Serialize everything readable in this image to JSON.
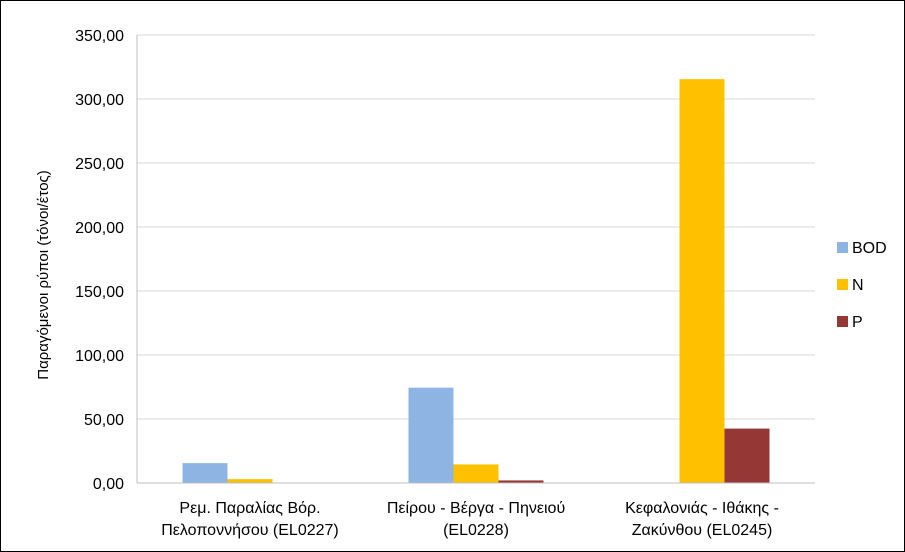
{
  "chart_data": {
    "type": "bar",
    "title": "",
    "xlabel": "",
    "ylabel": "Παραγόμενοι ρύποι (τόνοι/έτος)",
    "ylim": [
      0,
      350
    ],
    "yticks": [
      "0,00",
      "50,00",
      "100,00",
      "150,00",
      "200,00",
      "250,00",
      "300,00",
      "350,00"
    ],
    "grid": true,
    "legend_position": "right",
    "categories": [
      [
        "Ρεμ. Παραλίας Βόρ.",
        "Πελοποννήσου (EL0227)"
      ],
      [
        "Πείρου - Βέργα - Πηνειού",
        "(EL0228)"
      ],
      [
        "Κεφαλονιάς - Ιθάκης -",
        "Ζακύνθου (EL0245)"
      ]
    ],
    "series": [
      {
        "name": "BOD",
        "color": "#8DB4E2",
        "values": [
          15.5,
          74.5,
          0
        ]
      },
      {
        "name": "N",
        "color": "#FFC000",
        "values": [
          3.0,
          14.5,
          315.5
        ]
      },
      {
        "name": "P",
        "color": "#953735",
        "values": [
          0.3,
          2.0,
          42.5
        ]
      }
    ]
  }
}
